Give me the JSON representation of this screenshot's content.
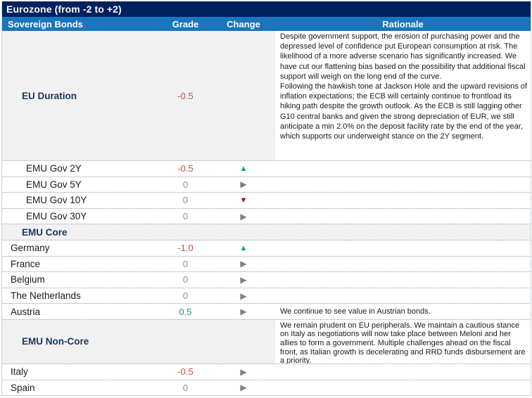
{
  "title": "Eurozone (from -2 to +2)",
  "columns": {
    "bonds": "Sovereign Bonds",
    "grade": "Grade",
    "change": "Change",
    "rationale": "Rationale"
  },
  "icons": {
    "up": "▲",
    "right": "▶",
    "down": "▼"
  },
  "colors": {
    "title_bar": "#002060",
    "header_bar": "#1B75BC",
    "section_text": "#17365D",
    "grade_negative": "#C0504D",
    "grade_zero": "#8c8c8c",
    "grade_positive": "#169C62",
    "arrow_up": "#169C76",
    "arrow_down": "#C00000",
    "arrow_right": "#808080"
  },
  "rows": [
    {
      "label": "EU Duration",
      "style": "section",
      "size": "xl",
      "grade": "-0.5",
      "tone": "neg",
      "change": null,
      "rationale": [
        "Despite government support, the erosion of purchasing power and the depressed level of confidence put European consumption at risk. The likelihood of a more adverse scenario has significantly increased. We have cut our flattening bias based on the possibility that additional fiscal support will weigh on the long end of the curve.",
        "Following the hawkish tone at Jackson Hole and the upward revisions of inflation expectations; the ECB will certainly continue to frontload its hiking path despite the growth outlook. As the ECB is still lagging other G10 central banks and given the strong depreciation of EUR, we still anticipate a min 2.0% on the deposit facility rate by the end of the year, which supports our underweight stance on the 2Y segment."
      ]
    },
    {
      "label": "EMU Gov 2Y",
      "style": "sub",
      "grade": "-0.5",
      "tone": "neg",
      "change": "up"
    },
    {
      "label": "EMU Gov 5Y",
      "style": "sub",
      "grade": "0",
      "tone": "zero",
      "change": "right"
    },
    {
      "label": "EMU Gov 10Y",
      "style": "sub",
      "grade": "0",
      "tone": "zero",
      "change": "down"
    },
    {
      "label": "EMU Gov 30Y",
      "style": "sub",
      "grade": "0",
      "tone": "zero",
      "change": "right"
    },
    {
      "label": "EMU Core",
      "style": "section"
    },
    {
      "label": "Germany",
      "style": "item",
      "grade": "-1.0",
      "tone": "neg",
      "change": "up"
    },
    {
      "label": "France",
      "style": "item",
      "grade": "0",
      "tone": "zero",
      "change": "right"
    },
    {
      "label": "Belgium",
      "style": "item",
      "grade": "0",
      "tone": "zero",
      "change": "right"
    },
    {
      "label": "The Netherlands",
      "style": "item",
      "grade": "0",
      "tone": "zero",
      "change": "right"
    },
    {
      "label": "Austria",
      "style": "item",
      "grade": "0.5",
      "tone": "pos",
      "change": "right",
      "rationale": [
        "We continue to see value in Austrian bonds."
      ]
    },
    {
      "label": "EMU Non-Core",
      "style": "section",
      "size": "lg",
      "rationale": [
        "We remain prudent on EU peripherals. We maintain a cautious stance on Italy as negotiations will now take place between Meloni and her allies to form a government. Multiple challenges ahead on the fiscal front, as Italian growth is decelerating and RRD funds disbursement are a priority."
      ]
    },
    {
      "label": "Italy",
      "style": "item",
      "grade": "-0.5",
      "tone": "neg",
      "change": "right"
    },
    {
      "label": "Spain",
      "style": "item",
      "grade": "0",
      "tone": "zero",
      "change": "right"
    }
  ]
}
